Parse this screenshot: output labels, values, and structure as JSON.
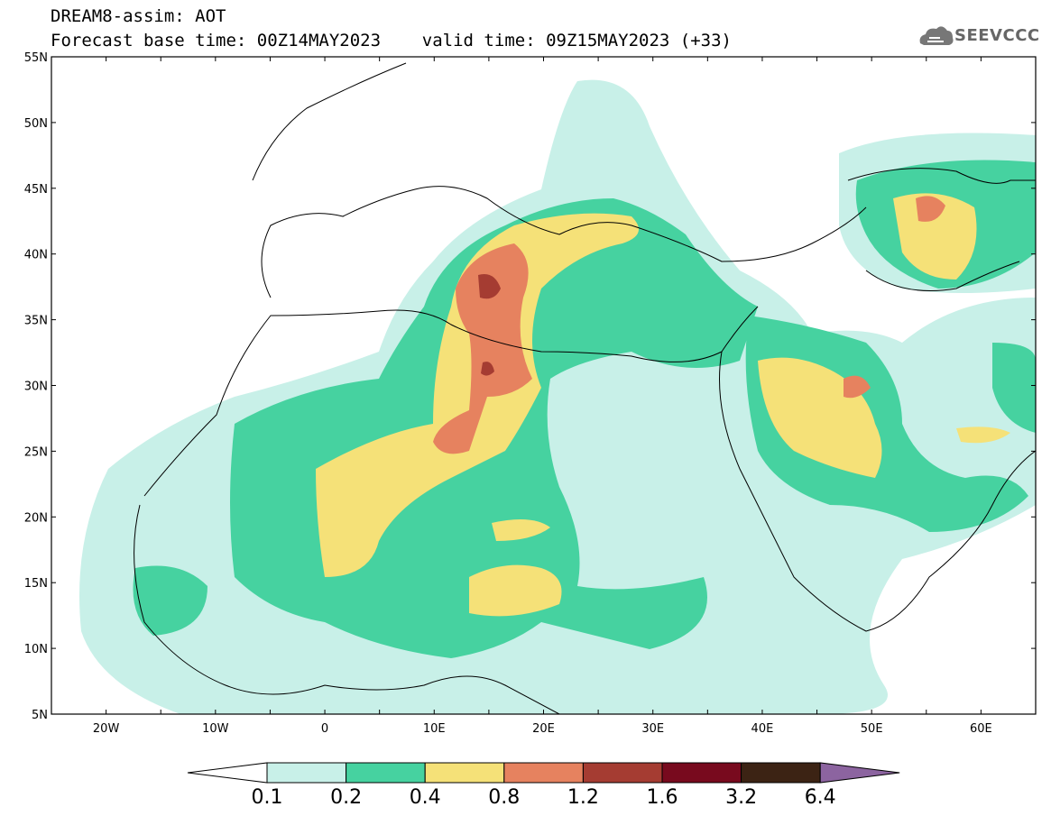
{
  "header": {
    "line1": "DREAM8-assim: AOT",
    "line2": "Forecast base time: 00Z14MAY2023    valid time: 09Z15MAY2023 (+33)"
  },
  "logo": {
    "text": "SEEVCCC",
    "icon": "cloud-icon"
  },
  "map": {
    "lon_range": [
      -25,
      65
    ],
    "lat_range": [
      5,
      55
    ],
    "lon_ticks": [
      {
        "value": -20,
        "label": "20W"
      },
      {
        "value": -10,
        "label": "10W"
      },
      {
        "value": 0,
        "label": "0"
      },
      {
        "value": 10,
        "label": "10E"
      },
      {
        "value": 20,
        "label": "20E"
      },
      {
        "value": 30,
        "label": "30E"
      },
      {
        "value": 40,
        "label": "40E"
      },
      {
        "value": 50,
        "label": "50E"
      },
      {
        "value": 60,
        "label": "60E"
      }
    ],
    "lat_ticks": [
      {
        "value": 5,
        "label": "5N"
      },
      {
        "value": 10,
        "label": "10N"
      },
      {
        "value": 15,
        "label": "15N"
      },
      {
        "value": 20,
        "label": "20N"
      },
      {
        "value": 25,
        "label": "25N"
      },
      {
        "value": 30,
        "label": "30N"
      },
      {
        "value": 35,
        "label": "35N"
      },
      {
        "value": 40,
        "label": "40N"
      },
      {
        "value": 45,
        "label": "45N"
      },
      {
        "value": 50,
        "label": "50N"
      },
      {
        "value": 55,
        "label": "55N"
      }
    ]
  },
  "colorbar": {
    "labels": [
      "0.1",
      "0.2",
      "0.4",
      "0.8",
      "1.2",
      "1.6",
      "3.2",
      "6.4"
    ],
    "colors": [
      "#ffffff",
      "#c8f0e8",
      "#46d2a0",
      "#f5e178",
      "#e6825f",
      "#a53c32",
      "#780a1e",
      "#3c2314",
      "#8c64a0"
    ]
  }
}
